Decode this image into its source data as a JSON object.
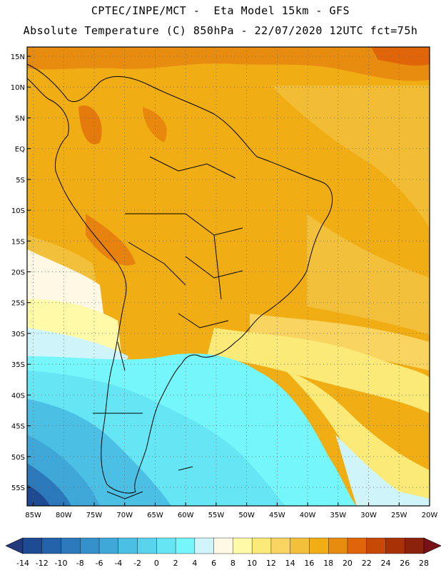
{
  "header": {
    "line1": "CPTEC/INPE/MCT -  Eta Model 15km - GFS",
    "line2": "Absolute Temperature (C) 850hPa - 22/07/2020 12UTC fct=75h"
  },
  "map": {
    "lat_ticks": [
      "15N",
      "10N",
      "5N",
      "EQ",
      "5S",
      "10S",
      "15S",
      "20S",
      "25S",
      "30S",
      "35S",
      "40S",
      "45S",
      "50S",
      "55S"
    ],
    "lon_ticks": [
      "85W",
      "80W",
      "75W",
      "70W",
      "65W",
      "60W",
      "55W",
      "50W",
      "45W",
      "40W",
      "35W",
      "30W",
      "25W",
      "20W"
    ],
    "lat_values": [
      15,
      10,
      5,
      0,
      -5,
      -10,
      -15,
      -20,
      -25,
      -30,
      -35,
      -40,
      -45,
      -50,
      -55
    ],
    "lon_values": [
      -85,
      -80,
      -75,
      -70,
      -65,
      -60,
      -55,
      -50,
      -45,
      -40,
      -35,
      -30,
      -25,
      -20
    ],
    "lat_range": [
      -58,
      16.5
    ],
    "lon_range": [
      -86,
      -20
    ]
  },
  "colorbar": {
    "labels": [
      "-14",
      "-12",
      "-10",
      "-8",
      "-6",
      "-4",
      "-2",
      "0",
      "2",
      "4",
      "6",
      "8",
      "10",
      "12",
      "14",
      "16",
      "18",
      "20",
      "22",
      "24",
      "26",
      "28"
    ],
    "colors": [
      "#1e4a94",
      "#2361a8",
      "#2b78ba",
      "#3490c8",
      "#40a8d8",
      "#4cc0e4",
      "#58d4ec",
      "#66e6f4",
      "#74f6fa",
      "#cff4fa",
      "#fff8e4",
      "#fffaa8",
      "#fbea78",
      "#f9d460",
      "#f3c03c",
      "#f0ae14",
      "#e88c10",
      "#e06408",
      "#c84806",
      "#a83206",
      "#8a220c"
    ],
    "under_color": "#223a7c",
    "over_color": "#7a1018"
  }
}
